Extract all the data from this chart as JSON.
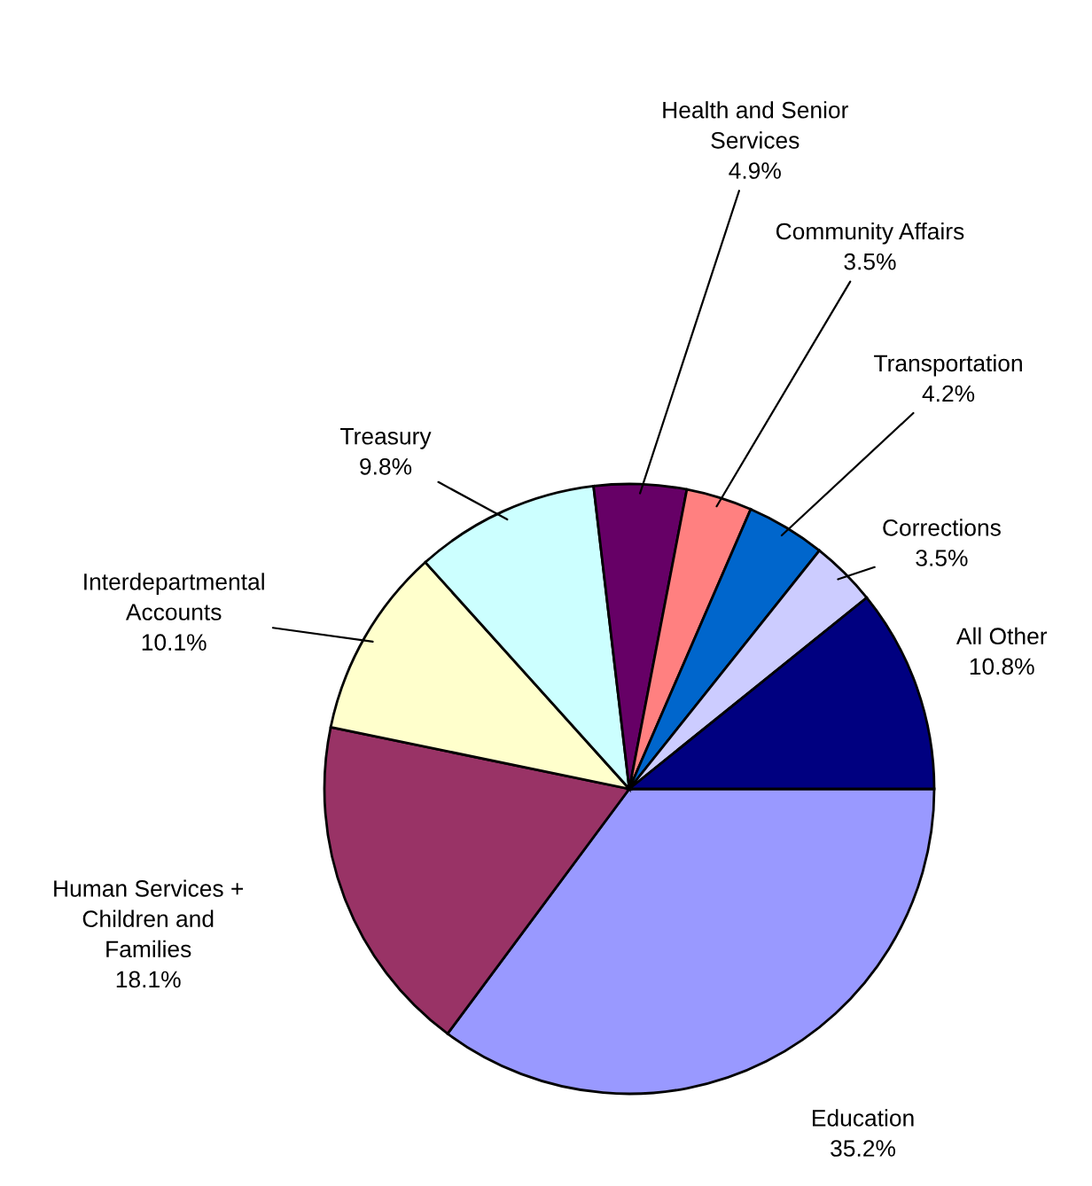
{
  "chart_data": {
    "type": "pie",
    "categories": [
      "Education",
      "Human Services +\nChildren and\nFamilies",
      "Interdepartmental\nAccounts",
      "Treasury",
      "Health and Senior\nServices",
      "Community Affairs",
      "Transportation",
      "Corrections",
      "All Other"
    ],
    "values": [
      35.2,
      18.1,
      10.1,
      9.8,
      4.9,
      3.5,
      4.2,
      3.5,
      10.8
    ],
    "value_labels": [
      "35.2%",
      "18.1%",
      "10.1%",
      "9.8%",
      "4.9%",
      "3.5%",
      "4.2%",
      "3.5%",
      "10.8%"
    ],
    "colors": [
      "#9999ff",
      "#993366",
      "#ffffcc",
      "#ccffff",
      "#660066",
      "#ff8080",
      "#0066cc",
      "#ccccff",
      "#000080"
    ]
  }
}
